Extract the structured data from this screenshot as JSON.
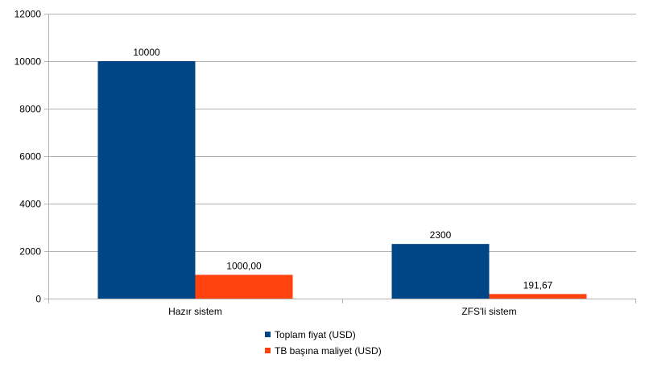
{
  "chart_data": {
    "type": "bar",
    "categories": [
      "Hazır sistem",
      "ZFS'li sistem"
    ],
    "series": [
      {
        "name": "Toplam fiyat (USD)",
        "values": [
          10000,
          2300
        ],
        "labels": [
          "10000",
          "2300"
        ],
        "color": "#004586"
      },
      {
        "name": "TB başına maliyet (USD)",
        "values": [
          1000,
          191.67
        ],
        "labels": [
          "1000,00",
          "191,67"
        ],
        "color": "#ff420e"
      }
    ],
    "ylim": [
      0,
      12000
    ],
    "yticks": [
      0,
      2000,
      4000,
      6000,
      8000,
      10000,
      12000
    ],
    "grid": true,
    "legend": "bottom"
  }
}
